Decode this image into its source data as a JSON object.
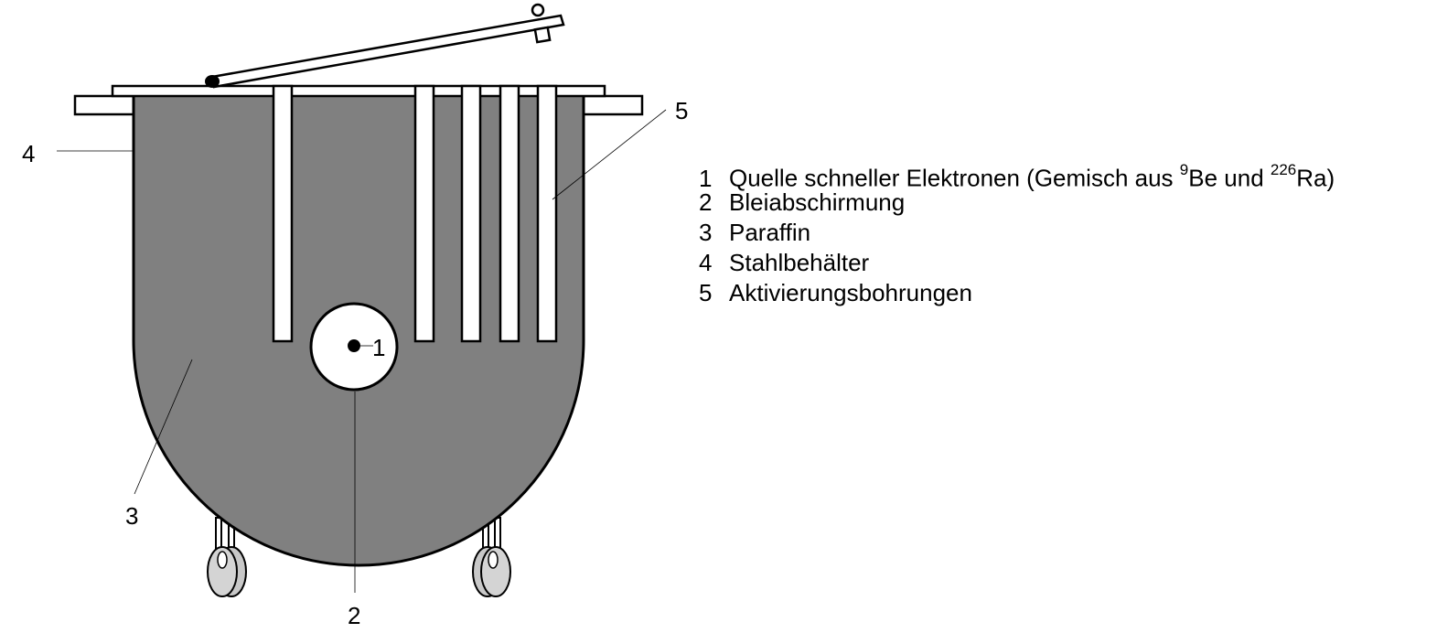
{
  "callouts": {
    "c1": "1",
    "c2": "2",
    "c3": "3",
    "c4": "4",
    "c5": "5"
  },
  "legend": {
    "item1": {
      "num": "1",
      "text_a": "Quelle schneller Elektronen (Gemisch aus ",
      "sup_a": "9",
      "text_b": "Be und ",
      "sup_b": "226",
      "text_c": "Ra)"
    },
    "item2": {
      "num": "2",
      "text": "Bleiabschirmung"
    },
    "item3": {
      "num": "3",
      "text": "Paraffin"
    },
    "item4": {
      "num": "4",
      "text": "Stahlbehälter"
    },
    "item5": {
      "num": "5",
      "text": "Aktivierungsbohrungen"
    }
  },
  "colors": {
    "paraffin_fill": "#808080",
    "outline": "#000000",
    "wheel": "#cccccc",
    "background": "#ffffff"
  }
}
